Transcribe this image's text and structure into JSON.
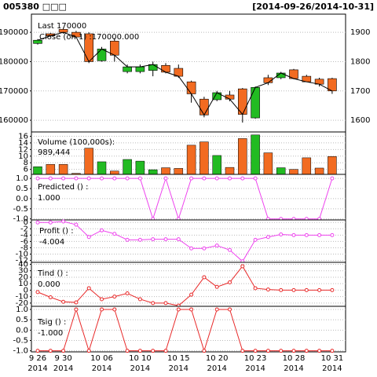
{
  "chart_data": [
    {
      "type": "candlestick",
      "title": "005380 □□□",
      "subtitle": "[2014-09-26/2014-10-31]",
      "legend": [
        "Last 170000",
        "Close (on 1) :170000.000"
      ],
      "open": [
        186200,
        189500,
        191000,
        190000,
        189500,
        180300,
        187000,
        176600,
        176600,
        177000,
        178700,
        177700,
        173100,
        167200,
        167000,
        168600,
        170700,
        160800,
        174500,
        174500,
        177200,
        175000,
        174000,
        174200
      ],
      "high": [
        187700,
        189800,
        191500,
        190500,
        190000,
        185000,
        188000,
        179000,
        179000,
        180000,
        179500,
        179000,
        173500,
        168000,
        170000,
        170000,
        171000,
        171500,
        175500,
        176500,
        177500,
        175500,
        174500,
        174500
      ],
      "low": [
        185800,
        188500,
        189500,
        188200,
        179500,
        180000,
        180000,
        176000,
        176000,
        175000,
        176000,
        174500,
        166000,
        161000,
        166500,
        166500,
        159200,
        160500,
        172000,
        174000,
        174000,
        173000,
        171500,
        169000
      ],
      "close": [
        187300,
        188800,
        190000,
        188400,
        180000,
        184300,
        182200,
        178200,
        178200,
        179000,
        176400,
        175000,
        169000,
        161800,
        169400,
        167200,
        162000,
        171200,
        172800,
        176100,
        174200,
        173100,
        172300,
        170000
      ],
      "up_color": "#22bb22",
      "down_color": "#f26b21",
      "line_color": "#000000",
      "legend_color": "#f26b21",
      "ylim": [
        156000,
        196200
      ],
      "yticks": [
        190000,
        180000,
        170000,
        160000
      ],
      "y2lim": [
        1560,
        1962
      ],
      "y2ticks": [
        1900,
        1800,
        1700,
        1600
      ],
      "grid": true
    },
    {
      "type": "volume",
      "label": "Volume (100,000s):",
      "last_label": "989,444",
      "label_color": "#f26b21",
      "values": [
        6.8,
        7.5,
        7.5,
        4.8,
        12.4,
        8.3,
        5.5,
        9.0,
        8.5,
        5.9,
        6.5,
        6.3,
        13.3,
        14.3,
        10.2,
        6.6,
        15.3,
        16.4,
        11.0,
        6.5,
        6.0,
        9.5,
        6.4,
        9.89
      ],
      "ylim": [
        4.5,
        17.3
      ],
      "yticks": [
        16,
        14,
        12,
        10,
        8,
        6
      ],
      "grid": true
    },
    {
      "type": "line",
      "label": "Predicted () :",
      "last_label": "1.000",
      "color": "#ee44ee",
      "values": [
        1,
        1,
        1,
        1,
        1,
        1,
        1,
        1,
        1,
        -1,
        1,
        -1,
        1,
        1,
        1,
        1,
        1,
        1,
        -1,
        -1,
        -1,
        -1,
        -1,
        1
      ],
      "ylim": [
        -1.05,
        1.2
      ],
      "yticks": [
        {
          "value": 1,
          "label": "1.0"
        },
        {
          "value": 0.5,
          "label": "0.5"
        },
        {
          "value": 0,
          "label": "0.0"
        },
        {
          "value": -0.5,
          "label": "-0.5"
        },
        {
          "value": -1,
          "label": "-1.0"
        }
      ],
      "grid": true
    },
    {
      "type": "line",
      "label": "Profit () :",
      "last_label": "-4.004",
      "color": "#ee44ee",
      "values": [
        0,
        0,
        0.3,
        -0.7,
        -4.6,
        -2.5,
        -3.6,
        -5.5,
        -5.5,
        -5.3,
        -5.3,
        -5.3,
        -8.2,
        -8.2,
        -7.3,
        -8.7,
        -12.3,
        -5.5,
        -4.6,
        -3.8,
        -4.0,
        -4.0,
        -4.0,
        -4.004
      ],
      "ylim": [
        -12.6,
        0.8
      ],
      "yticks": [
        0,
        -2,
        -4,
        -6,
        -8,
        -10,
        -12
      ],
      "grid": true
    },
    {
      "type": "line",
      "label": "Tind () :",
      "last_label": "0.000",
      "color": "#e82a2a",
      "values": [
        -3,
        -11,
        -18,
        -19,
        3,
        -14,
        -10,
        -5,
        -14,
        -20,
        -20,
        -24,
        -7,
        20,
        5,
        12,
        37,
        3,
        1,
        0,
        0,
        0,
        0,
        0
      ],
      "ylim": [
        -25,
        43
      ],
      "yticks": [
        40,
        30,
        20,
        10,
        0,
        -10,
        -20
      ],
      "grid": true
    },
    {
      "type": "line",
      "label": "Tsig () :",
      "last_label": "-1.000",
      "color": "#e82a2a",
      "values": [
        -1,
        -1,
        -1,
        1,
        -1,
        1,
        1,
        -1,
        -1,
        -1,
        -1,
        1,
        1,
        -1,
        1,
        1,
        -1,
        -1,
        -1,
        -1,
        -1,
        -1,
        -1,
        -1
      ],
      "ylim": [
        -1.05,
        1.15
      ],
      "yticks": [
        {
          "value": 1,
          "label": "1.0"
        },
        {
          "value": 0.5,
          "label": "0.5"
        },
        {
          "value": 0,
          "label": "0.0"
        },
        {
          "value": -0.5,
          "label": "-0.5"
        },
        {
          "value": -1,
          "label": "-1.0"
        }
      ],
      "grid": true,
      "categories": [
        "9 26",
        null,
        "9 30",
        null,
        null,
        "10 06",
        null,
        null,
        "10 10",
        null,
        null,
        "10 15",
        null,
        null,
        "10 20",
        null,
        null,
        "10 23",
        null,
        null,
        "10 28",
        null,
        null,
        "10 31"
      ],
      "x_sublabel": "2014"
    }
  ]
}
